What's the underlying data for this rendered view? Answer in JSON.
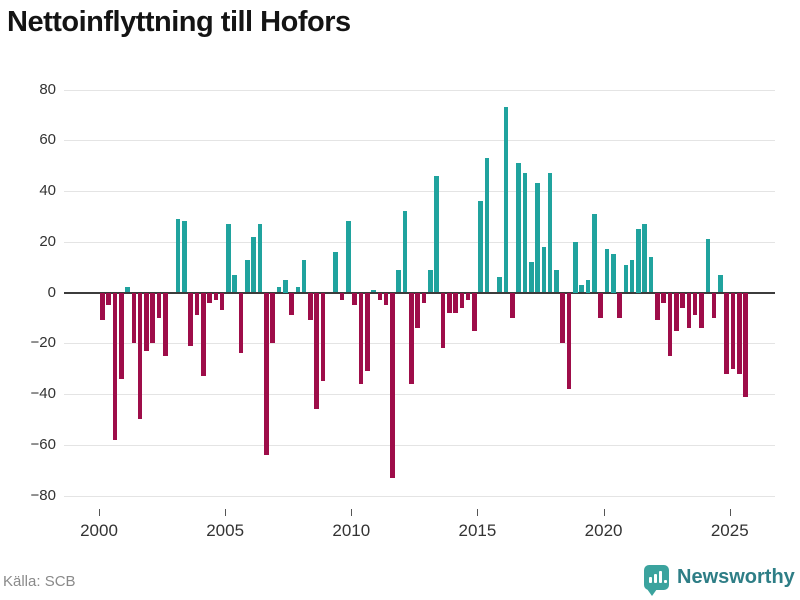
{
  "title": "Nettoinflyttning till Hofors",
  "source": "Källa: SCB",
  "logo": {
    "brand": "Newsworthy",
    "icon": "newsworthy-pin-icon"
  },
  "colors": {
    "positive": "#20a39e",
    "negative": "#9e0d49",
    "grid": "#e4e4e4",
    "zero_line": "#3c3c3c",
    "axis_text": "#333333",
    "title_text": "#141414",
    "source_text": "#8a8a8a",
    "brand_text": "#2e7e86",
    "brand_icon": "#3ba39e"
  },
  "chart_data": {
    "type": "bar",
    "title": "Nettoinflyttning till Hofors",
    "frequency": "quarterly",
    "x_start": {
      "year": 2000,
      "quarter": 1
    },
    "ylim": [
      -80,
      80
    ],
    "y_ticks": [
      80,
      60,
      40,
      20,
      0,
      -20,
      -40,
      -60,
      -80
    ],
    "x_ticks": [
      2000,
      2005,
      2010,
      2015,
      2020,
      2025
    ],
    "grid": true,
    "legend": "none",
    "values": [
      -11,
      -5,
      -58,
      -34,
      2,
      -20,
      -50,
      -23,
      -20,
      -10,
      -25,
      0,
      29,
      28,
      -21,
      -9,
      -33,
      -4,
      -3,
      -7,
      27,
      7,
      -24,
      13,
      22,
      27,
      -64,
      -20,
      2,
      5,
      -9,
      2,
      13,
      -11,
      -46,
      -35,
      0,
      16,
      -3,
      28,
      -5,
      -36,
      -31,
      1,
      -3,
      -5,
      -73,
      9,
      32,
      -36,
      -14,
      -4,
      9,
      46,
      -22,
      -8,
      -8,
      -6,
      -3,
      -15,
      36,
      53,
      0,
      6,
      73,
      -10,
      51,
      47,
      12,
      43,
      18,
      47,
      9,
      -20,
      -38,
      20,
      3,
      5,
      31,
      -10,
      17,
      15,
      -10,
      11,
      13,
      25,
      27,
      14,
      -11,
      -4,
      -25,
      -15,
      -6,
      -14,
      -9,
      -14,
      21,
      -10,
      7,
      -32,
      -30,
      -32,
      -41
    ]
  }
}
